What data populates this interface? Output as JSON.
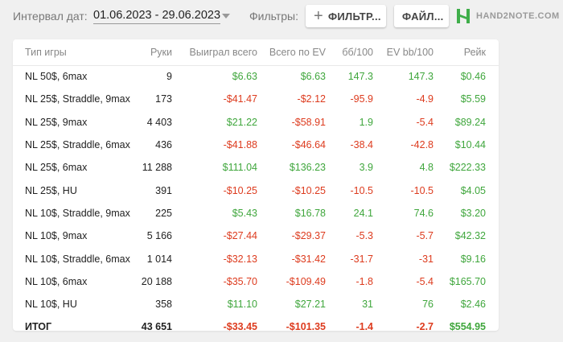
{
  "header": {
    "interval_label": "Интервал дат:",
    "interval_value": "01.06.2023 - 29.06.2023",
    "filters_label": "Фильтры:",
    "filter_button": "ФИЛЬТР...",
    "file_button": "ФАЙЛ...",
    "logo_text": "HAND2NOTE.COM"
  },
  "colors": {
    "positive": "#3fa63c",
    "negative": "#dd3b1e",
    "logo_green": "#3fae4a"
  },
  "table": {
    "columns": [
      "Тип игры",
      "Руки",
      "Выиграл всего",
      "Всего по EV",
      "бб/100",
      "EV bb/100",
      "Рейк"
    ],
    "rows": [
      [
        "NL 50$, 6max",
        "9",
        "$6.63",
        "$6.63",
        "147.3",
        "147.3",
        "$0.46"
      ],
      [
        "NL 25$, Straddle, 9max",
        "173",
        "-$41.47",
        "-$2.12",
        "-95.9",
        "-4.9",
        "$5.59"
      ],
      [
        "NL 25$, 9max",
        "4 403",
        "$21.22",
        "-$58.91",
        "1.9",
        "-5.4",
        "$89.24"
      ],
      [
        "NL 25$, Straddle, 6max",
        "436",
        "-$41.88",
        "-$46.64",
        "-38.4",
        "-42.8",
        "$10.44"
      ],
      [
        "NL 25$, 6max",
        "11 288",
        "$111.04",
        "$136.23",
        "3.9",
        "4.8",
        "$222.33"
      ],
      [
        "NL 25$, HU",
        "391",
        "-$10.25",
        "-$10.25",
        "-10.5",
        "-10.5",
        "$4.05"
      ],
      [
        "NL 10$, Straddle, 9max",
        "225",
        "$5.43",
        "$16.78",
        "24.1",
        "74.6",
        "$3.20"
      ],
      [
        "NL 10$, 9max",
        "5 166",
        "-$27.44",
        "-$29.37",
        "-5.3",
        "-5.7",
        "$42.32"
      ],
      [
        "NL 10$, Straddle, 6max",
        "1 014",
        "-$32.13",
        "-$31.42",
        "-31.7",
        "-31",
        "$9.16"
      ],
      [
        "NL 10$, 6max",
        "20 188",
        "-$35.70",
        "-$109.49",
        "-1.8",
        "-5.4",
        "$165.70"
      ],
      [
        "NL 10$, HU",
        "358",
        "$11.10",
        "$27.21",
        "31",
        "76",
        "$2.46"
      ]
    ],
    "total": [
      "ИТОГ",
      "43 651",
      "-$33.45",
      "-$101.35",
      "-1.4",
      "-2.7",
      "$554.95"
    ]
  }
}
